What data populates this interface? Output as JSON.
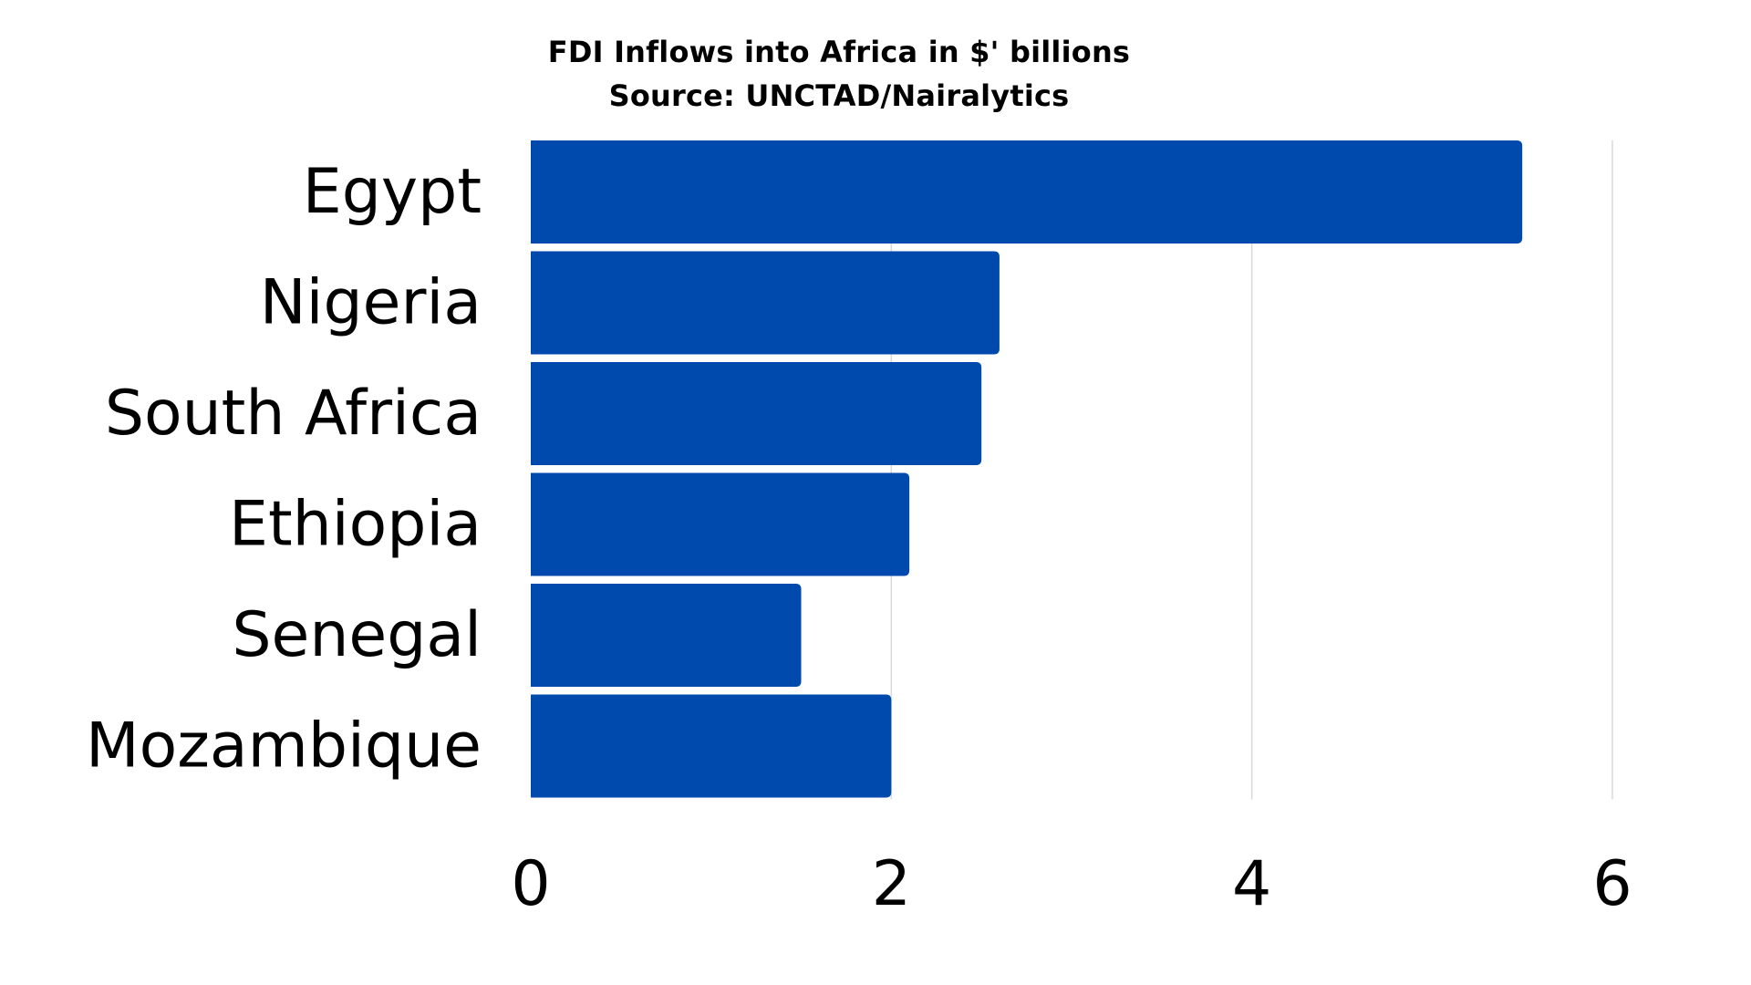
{
  "chart_data": {
    "type": "bar",
    "orientation": "horizontal",
    "title": "FDI Inflows into Africa in $' billions",
    "subtitle": "Source: UNCTAD/Nairalytics",
    "categories": [
      "Egypt",
      "Nigeria",
      "South Africa",
      "Ethiopia",
      "Senegal",
      "Mozambique"
    ],
    "values": [
      5.5,
      2.6,
      2.5,
      2.1,
      1.5,
      2.0
    ],
    "xlabel": "",
    "ylabel": "",
    "xlim": [
      0,
      6
    ],
    "xticks": [
      "0",
      "2",
      "4",
      "6"
    ],
    "grid": true,
    "legend": "none",
    "colors": {
      "bar": "#004AAD",
      "grid": "#d9d9d9",
      "text": "#000000"
    }
  }
}
